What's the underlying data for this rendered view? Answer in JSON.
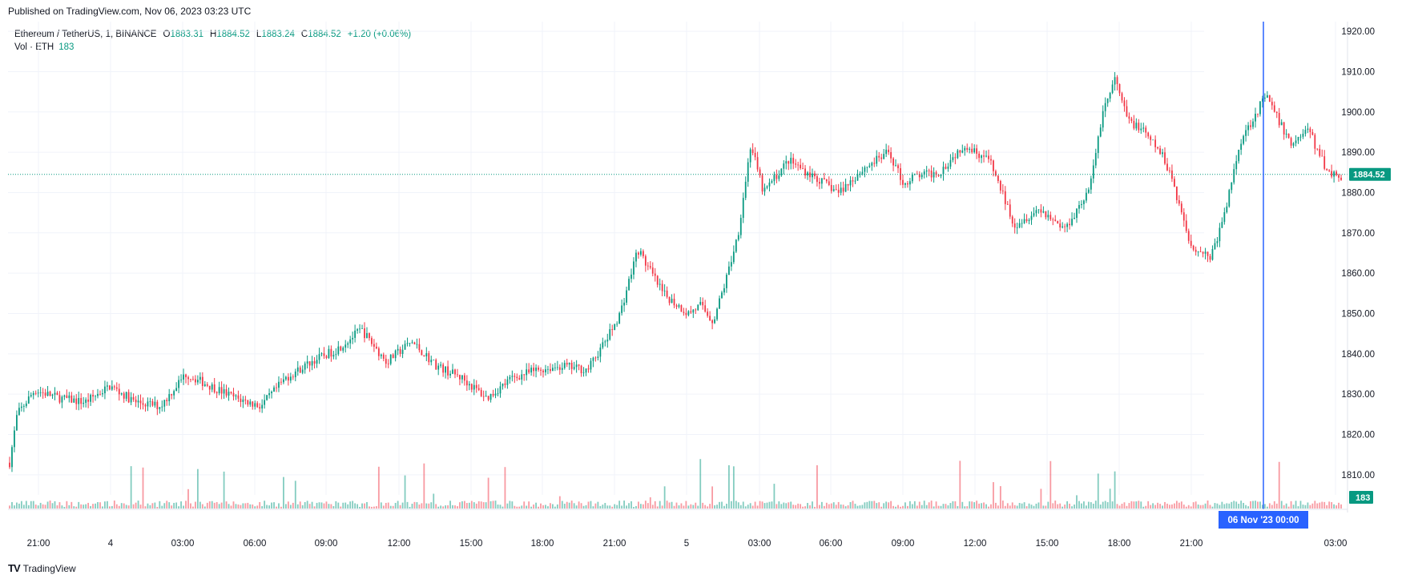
{
  "published_text": "Published on TradingView.com, Nov 06, 2023 03:23 UTC",
  "brand": "TradingView",
  "brand_logo": "TV",
  "legend": {
    "symbol": "Ethereum / TetherUS, 1, BINANCE",
    "open_key": "O",
    "open": "1883.31",
    "high_key": "H",
    "high": "1884.52",
    "low_key": "L",
    "low": "1883.24",
    "close_key": "C",
    "close": "1884.52",
    "change": "+1.20 (+0.06%)",
    "volume_label": "Vol · ETH",
    "volume_value": "183"
  },
  "colors": {
    "up": "#089981",
    "down": "#f23645",
    "crosshair": "#2962ff",
    "grid": "#f0f3fa"
  },
  "chart_data": {
    "type": "candlestick",
    "symbol": "Ethereum / TetherUS",
    "interval": "1",
    "exchange": "BINANCE",
    "y_axis": {
      "ticks": [
        1810,
        1820,
        1830,
        1840,
        1850,
        1860,
        1870,
        1880,
        1890,
        1900,
        1910,
        1920
      ],
      "range": [
        1805,
        1923
      ],
      "position": "right"
    },
    "x_axis": {
      "ticks": [
        "21:00",
        "4",
        "03:00",
        "06:00",
        "09:00",
        "12:00",
        "15:00",
        "18:00",
        "21:00",
        "5",
        "03:00",
        "06:00",
        "09:00",
        "12:00",
        "15:00",
        "18:00",
        "21:00",
        "06 Nov '23  00:00",
        "03:00"
      ]
    },
    "price_path_hours": [
      0,
      0.3,
      1,
      2,
      3,
      4,
      5,
      6,
      7,
      8,
      9,
      10,
      11,
      12,
      13,
      14,
      15,
      16,
      17,
      18,
      19,
      20,
      21,
      22,
      23,
      23.8,
      24.3,
      25,
      26,
      27,
      27.5,
      28,
      28.5,
      29,
      29.5,
      30,
      31,
      32,
      33,
      34,
      35,
      35.6,
      36,
      37,
      38,
      39,
      40,
      41,
      42,
      42.7,
      43,
      43.5,
      44,
      44.5,
      45,
      45.8,
      46.2,
      47,
      47.8,
      48.3,
      49,
      50,
      51,
      51.7,
      52,
      52.5,
      53
    ],
    "price_path_values": [
      1813,
      1825,
      1831,
      1829,
      1828,
      1832,
      1828,
      1827,
      1835,
      1832,
      1829,
      1827,
      1834,
      1838,
      1841,
      1846,
      1838,
      1843,
      1837,
      1834,
      1829,
      1834,
      1836,
      1837,
      1836,
      1844,
      1850,
      1866,
      1855,
      1850,
      1852,
      1848,
      1858,
      1870,
      1892,
      1880,
      1888,
      1884,
      1880,
      1886,
      1890,
      1882,
      1884,
      1885,
      1892,
      1888,
      1872,
      1876,
      1871,
      1878,
      1881,
      1900,
      1908,
      1898,
      1896,
      1890,
      1885,
      1867,
      1864,
      1873,
      1893,
      1904,
      1892,
      1896,
      1891,
      1885,
      1884
    ],
    "last_price": 1884.52,
    "last_volume": 183,
    "crosshair_time": "06 Nov '23  00:00",
    "grid": true,
    "legend_position": "top-left"
  }
}
